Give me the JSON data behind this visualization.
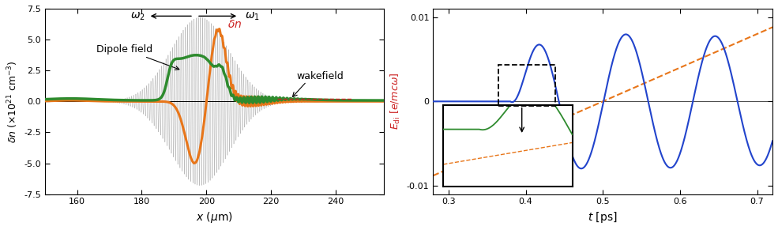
{
  "left_xlim": [
    150,
    255
  ],
  "left_ylim": [
    -7.5,
    7.5
  ],
  "left_xticks": [
    160,
    180,
    200,
    220,
    240
  ],
  "left_yticks": [
    -7.5,
    -5.0,
    -2.5,
    0.0,
    2.5,
    5.0,
    7.5
  ],
  "right_xlim": [
    0.28,
    0.72
  ],
  "right_ylim": [
    -0.011,
    0.011
  ],
  "right_xticks": [
    0.3,
    0.4,
    0.5,
    0.6,
    0.7
  ],
  "right_yticks": [
    -0.01,
    0,
    0.01
  ],
  "orange_color": "#E8761A",
  "green_color": "#2e8b2e",
  "gray_color": "#aaaaaa",
  "blue_color": "#2244cc",
  "red_color": "#cc2222",
  "orange_dash_color": "#E8761A"
}
